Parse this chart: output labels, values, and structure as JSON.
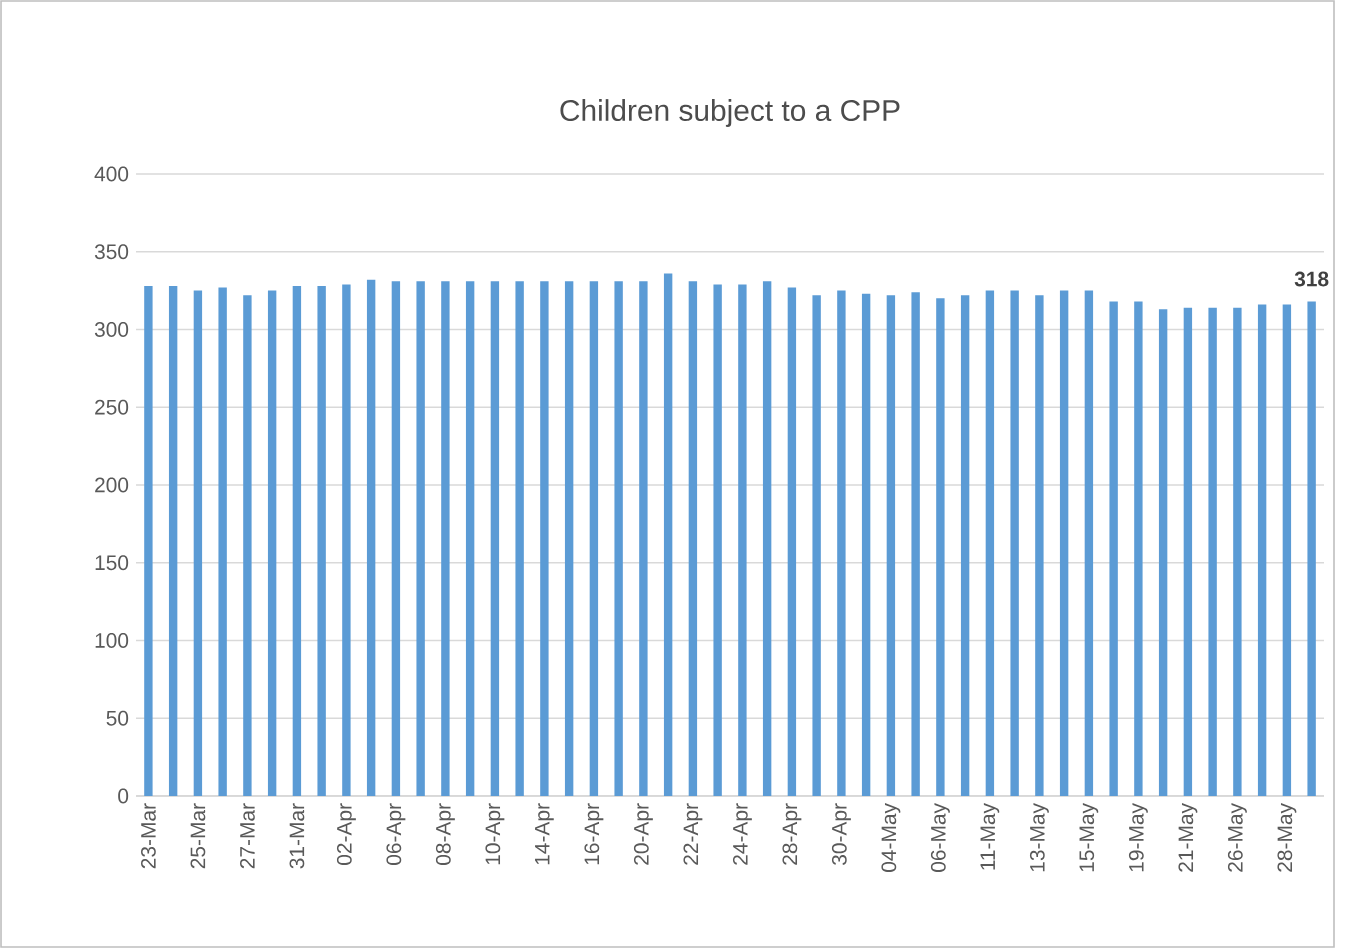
{
  "chart_data": {
    "type": "bar",
    "title": "Children subject to a CPP",
    "categories": [
      "23-Mar",
      null,
      "25-Mar",
      null,
      "27-Mar",
      null,
      "31-Mar",
      null,
      "02-Apr",
      null,
      "06-Apr",
      null,
      "08-Apr",
      null,
      "10-Apr",
      null,
      "14-Apr",
      null,
      "16-Apr",
      null,
      "20-Apr",
      null,
      "22-Apr",
      null,
      "24-Apr",
      null,
      "28-Apr",
      null,
      "30-Apr",
      null,
      "04-May",
      null,
      "06-May",
      null,
      "11-May",
      null,
      "13-May",
      null,
      "15-May",
      null,
      "19-May",
      null,
      "21-May",
      null,
      "26-May",
      null,
      "28-May",
      null
    ],
    "values": [
      328,
      328,
      325,
      327,
      322,
      325,
      328,
      328,
      329,
      332,
      331,
      331,
      331,
      331,
      331,
      331,
      331,
      331,
      331,
      331,
      331,
      336,
      331,
      329,
      329,
      331,
      327,
      322,
      325,
      323,
      322,
      324,
      320,
      322,
      325,
      325,
      322,
      325,
      325,
      318,
      318,
      313,
      314,
      314,
      314,
      316,
      316,
      318
    ],
    "value_labels": [
      null,
      null,
      null,
      null,
      null,
      null,
      null,
      null,
      null,
      null,
      null,
      null,
      null,
      null,
      null,
      null,
      null,
      null,
      null,
      null,
      null,
      null,
      null,
      null,
      null,
      null,
      null,
      null,
      null,
      null,
      null,
      null,
      null,
      null,
      null,
      null,
      null,
      null,
      null,
      null,
      null,
      null,
      null,
      null,
      null,
      null,
      null,
      "318"
    ],
    "color": "#5b9bd5",
    "ylim": [
      0,
      400
    ],
    "yticks": [
      0,
      50,
      100,
      150,
      200,
      250,
      300,
      350,
      400
    ],
    "grid": "y"
  }
}
